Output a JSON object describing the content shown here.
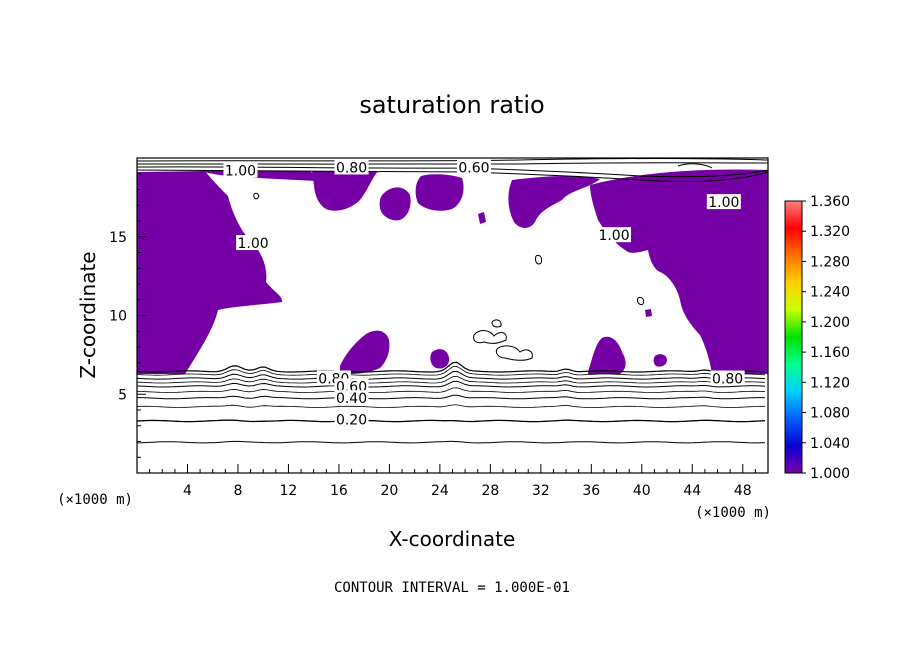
{
  "chart_data": {
    "type": "contour",
    "title": "saturation ratio",
    "xlabel": "X-coordinate",
    "ylabel": "Z-coordinate",
    "x_unit_label": "(×1000 m)",
    "x_unit_label_right": "(×1000 m)",
    "xlim": [
      0,
      50
    ],
    "ylim": [
      0,
      20
    ],
    "x_ticks": [
      4,
      8,
      12,
      16,
      20,
      24,
      28,
      32,
      36,
      40,
      44,
      48
    ],
    "y_ticks": [
      5,
      10,
      15
    ],
    "x_tick_labels": [
      "4",
      "8",
      "12",
      "16",
      "20",
      "24",
      "28",
      "32",
      "36",
      "40",
      "44",
      "48"
    ],
    "y_tick_labels": [
      "5",
      "10",
      "15"
    ],
    "footer": "CONTOUR INTERVAL = 1.000E-01",
    "colorbar": {
      "min": 1.0,
      "max": 1.36,
      "labels": [
        "1.360",
        "1.320",
        "1.280",
        "1.240",
        "1.200",
        "1.160",
        "1.120",
        "1.080",
        "1.040",
        "1.000"
      ],
      "colors": [
        "#7a00a8",
        "#0a00d0",
        "#0060ff",
        "#00d0ff",
        "#00ff8c",
        "#00e000",
        "#c8ff00",
        "#ffd000",
        "#ff7000",
        "#ff0000",
        "#ff8080"
      ]
    },
    "filled_region_color": "#7500a6",
    "contour_lines": [
      {
        "level": 0.2,
        "label": "0.20",
        "z": 3.25
      },
      {
        "level": 0.4,
        "label": "0.40",
        "z": 4.75
      },
      {
        "level": 0.6,
        "label": "0.60",
        "z": 5.55
      },
      {
        "level": 0.8,
        "label": "0.80",
        "z": 6.0
      },
      {
        "level": 1.0,
        "label": "1.00",
        "z": 6.45
      }
    ],
    "contour_labels_shown": [
      {
        "text": "1.00",
        "x": 8.2,
        "z": 19.2
      },
      {
        "text": "0.80",
        "x": 17.0,
        "z": 19.4
      },
      {
        "text": "0.60",
        "x": 26.7,
        "z": 19.4
      },
      {
        "text": "1.00",
        "x": 46.5,
        "z": 17.2
      },
      {
        "text": "1.00",
        "x": 9.2,
        "z": 14.6
      },
      {
        "text": "1.00",
        "x": 37.8,
        "z": 15.1
      },
      {
        "text": "0.80",
        "x": 15.6,
        "z": 6.0
      },
      {
        "text": "0.60",
        "x": 17.0,
        "z": 5.5
      },
      {
        "text": "0.40",
        "x": 17.0,
        "z": 4.75
      },
      {
        "text": "0.20",
        "x": 17.0,
        "z": 3.4
      },
      {
        "text": "0.80",
        "x": 46.8,
        "z": 6.0
      }
    ]
  }
}
